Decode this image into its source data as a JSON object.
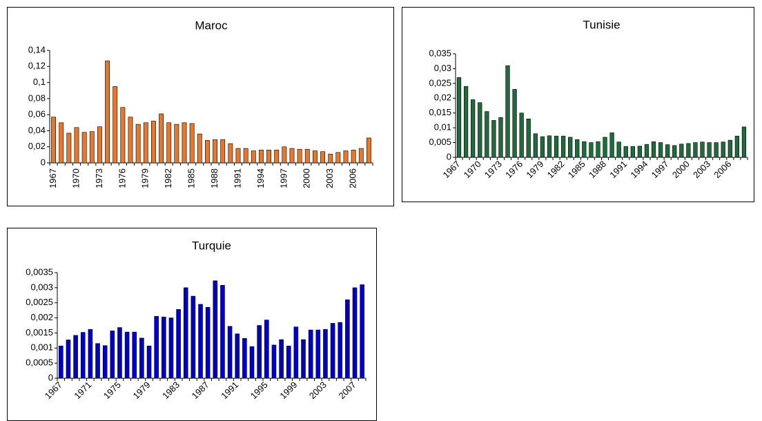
{
  "chart_data": [
    {
      "type": "bar",
      "title": "Maroc",
      "color": "#e8772e",
      "categories": [
        "1967",
        null,
        null,
        "1970",
        null,
        null,
        "1973",
        null,
        null,
        "1976",
        null,
        null,
        "1979",
        null,
        null,
        "1982",
        null,
        null,
        "1985",
        null,
        null,
        "1988",
        null,
        null,
        "1991",
        null,
        null,
        "1994",
        null,
        null,
        "1997",
        null,
        null,
        "2000",
        null,
        null,
        "2003",
        null,
        null,
        "2006",
        null,
        null
      ],
      "values": [
        0.057,
        0.05,
        0.037,
        0.044,
        0.038,
        0.039,
        0.045,
        0.127,
        0.095,
        0.069,
        0.057,
        0.048,
        0.05,
        0.052,
        0.061,
        0.05,
        0.048,
        0.05,
        0.049,
        0.036,
        0.028,
        0.029,
        0.029,
        0.024,
        0.018,
        0.018,
        0.015,
        0.016,
        0.016,
        0.016,
        0.02,
        0.018,
        0.017,
        0.017,
        0.015,
        0.014,
        0.011,
        0.013,
        0.015,
        0.016,
        0.018,
        0.031
      ],
      "ylim": [
        0,
        0.14
      ],
      "yticks": [
        0,
        {
          "value": 0.02,
          "label": "0,02"
        },
        {
          "value": 0.04,
          "label": "0,04"
        },
        {
          "value": 0.06,
          "label": "0,06"
        },
        {
          "value": 0.08,
          "label": "0,08"
        },
        {
          "value": 0.1,
          "label": "0,1"
        },
        {
          "value": 0.12,
          "label": "0,12"
        },
        {
          "value": 0.14,
          "label": "0,14"
        }
      ]
    },
    {
      "type": "bar",
      "title": "Tunisie",
      "color": "#1e6b3c",
      "categories": [
        "1967",
        null,
        null,
        "1970",
        null,
        null,
        "1973",
        null,
        null,
        "1976",
        null,
        null,
        "1979",
        null,
        null,
        "1982",
        null,
        null,
        "1985",
        null,
        null,
        "1988",
        null,
        null,
        "1991",
        null,
        null,
        "1994",
        null,
        null,
        "1997",
        null,
        null,
        "2000",
        null,
        null,
        "2003",
        null,
        null,
        "2006",
        null,
        null
      ],
      "values": [
        0.027,
        0.024,
        0.0195,
        0.0185,
        0.0155,
        0.0125,
        0.0135,
        0.031,
        0.023,
        0.015,
        0.013,
        0.008,
        0.007,
        0.0073,
        0.0072,
        0.0072,
        0.0068,
        0.006,
        0.0053,
        0.005,
        0.0053,
        0.0068,
        0.0083,
        0.0052,
        0.0037,
        0.0037,
        0.0038,
        0.0044,
        0.0053,
        0.005,
        0.0043,
        0.004,
        0.0045,
        0.0047,
        0.005,
        0.0052,
        0.005,
        0.005,
        0.0052,
        0.0058,
        0.0072,
        0.0103
      ],
      "ylim": [
        0,
        0.035
      ],
      "yticks": [
        0,
        {
          "value": 0.005,
          "label": "0,005"
        },
        {
          "value": 0.01,
          "label": "0,01"
        },
        {
          "value": 0.015,
          "label": "0,015"
        },
        {
          "value": 0.02,
          "label": "0,02"
        },
        {
          "value": 0.025,
          "label": "0,025"
        },
        {
          "value": 0.03,
          "label": "0,03"
        },
        {
          "value": 0.035,
          "label": "0,035"
        }
      ]
    },
    {
      "type": "bar",
      "title": "Turquie",
      "color": "#0000cc",
      "categories": [
        "1967",
        null,
        null,
        null,
        "1971",
        null,
        null,
        null,
        "1975",
        null,
        null,
        null,
        "1979",
        null,
        null,
        null,
        "1983",
        null,
        null,
        null,
        "1987",
        null,
        null,
        null,
        "1991",
        null,
        null,
        null,
        "1995",
        null,
        null,
        null,
        "1999",
        null,
        null,
        null,
        "2003",
        null,
        null,
        null,
        "2007",
        null
      ],
      "values": [
        0.00107,
        0.00127,
        0.00142,
        0.00152,
        0.00162,
        0.00115,
        0.00108,
        0.00157,
        0.00168,
        0.00153,
        0.00153,
        0.00133,
        0.00107,
        0.00205,
        0.00203,
        0.002,
        0.00228,
        0.003,
        0.00272,
        0.00245,
        0.00235,
        0.00323,
        0.00308,
        0.00172,
        0.00147,
        0.00132,
        0.00105,
        0.00175,
        0.00193,
        0.0011,
        0.00128,
        0.00107,
        0.0017,
        0.00128,
        0.0016,
        0.0016,
        0.00162,
        0.00182,
        0.00185,
        0.0026,
        0.003,
        0.0031
      ],
      "ylim": [
        0,
        0.0035
      ],
      "yticks": [
        0,
        {
          "value": 0.0005,
          "label": "0,0005"
        },
        {
          "value": 0.001,
          "label": "0,001"
        },
        {
          "value": 0.0015,
          "label": "0,0015"
        },
        {
          "value": 0.002,
          "label": "0,002"
        },
        {
          "value": 0.0025,
          "label": "0,0025"
        },
        {
          "value": 0.003,
          "label": "0,003"
        },
        {
          "value": 0.0035,
          "label": "0,0035"
        }
      ]
    }
  ]
}
